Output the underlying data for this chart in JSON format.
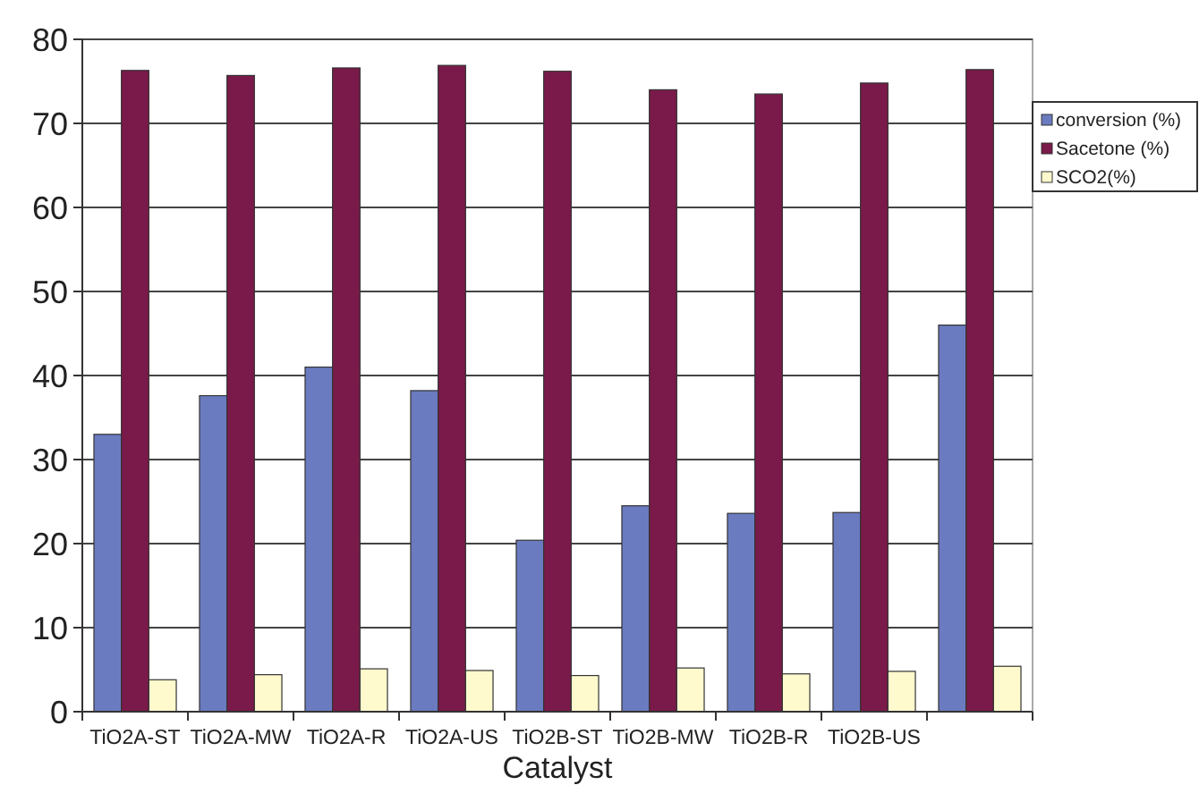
{
  "chart_data": {
    "type": "bar",
    "xlabel": "Catalyst",
    "categories": [
      "TiO2A-ST",
      "TiO2A-MW",
      "TiO2A-R",
      "TiO2A-US",
      "TiO2B-ST",
      "TiO2B-MW",
      "TiO2B-R",
      "TiO2B-US",
      null
    ],
    "series": [
      {
        "name": "conversion (%)",
        "color": "#6b7bc0",
        "values": [
          33,
          37.6,
          41,
          38.2,
          20.4,
          24.5,
          23.6,
          23.7,
          46
        ]
      },
      {
        "name": "Sacetone (%)",
        "color": "#7a1a4a",
        "values": [
          76.3,
          75.7,
          76.6,
          76.9,
          76.2,
          74,
          73.5,
          74.8,
          76.4
        ]
      },
      {
        "name": "SCO2(%)",
        "color": "#fffacd",
        "values": [
          3.8,
          4.4,
          5.1,
          4.9,
          4.3,
          5.2,
          4.5,
          4.8,
          5.4
        ]
      }
    ],
    "ylim": [
      0,
      80
    ],
    "yticks": [
      0,
      10,
      20,
      30,
      40,
      50,
      60,
      70,
      80
    ],
    "grid": "y",
    "legend": "top right"
  }
}
